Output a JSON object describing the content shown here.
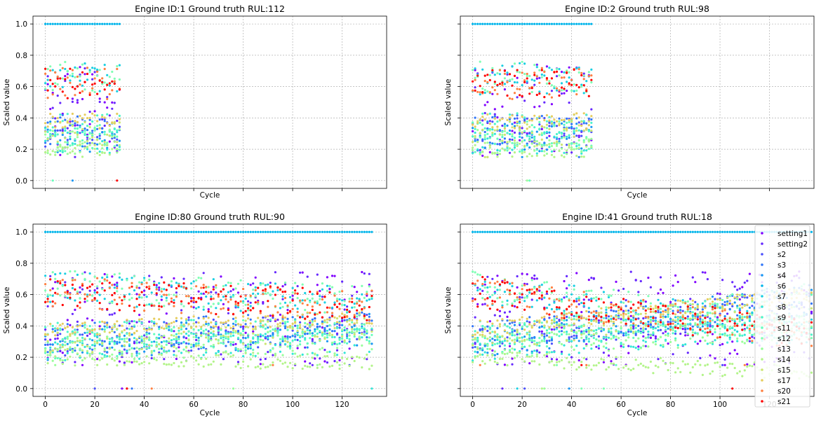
{
  "figure": {
    "shared_xlabel": "Cycle",
    "shared_ylabel": "Scaled value"
  },
  "legend": {
    "entries": [
      {
        "name": "setting1",
        "color": "#8000ff"
      },
      {
        "name": "setting2",
        "color": "#6629fe"
      },
      {
        "name": "s2",
        "color": "#4c50fc"
      },
      {
        "name": "s3",
        "color": "#3176f8"
      },
      {
        "name": "s4",
        "color": "#1996f3"
      },
      {
        "name": "s6",
        "color": "#00b5eb"
      },
      {
        "name": "s7",
        "color": "#19cfe2"
      },
      {
        "name": "s8",
        "color": "#32e6d7"
      },
      {
        "name": "s9",
        "color": "#4df5ca"
      },
      {
        "name": "s11",
        "color": "#66febb"
      },
      {
        "name": "s12",
        "color": "#80ffb4"
      },
      {
        "name": "s13",
        "color": "#9afe9b"
      },
      {
        "name": "s14",
        "color": "#b3f48a"
      },
      {
        "name": "s15",
        "color": "#cce572"
      },
      {
        "name": "s17",
        "color": "#e6cd5e"
      },
      {
        "name": "s20",
        "color": "#ff7f41"
      },
      {
        "name": "s21",
        "color": "#ff0000"
      }
    ]
  },
  "chart_data": [
    {
      "type": "scatter",
      "title": "Engine ID:1  Ground truth RUL:112",
      "xlabel": "Cycle",
      "ylabel": "Scaled value",
      "xlim": [
        -5,
        138
      ],
      "ylim": [
        -0.05,
        1.05
      ],
      "x_ticks": [
        0,
        20,
        40,
        60,
        80,
        100,
        120
      ],
      "y_ticks": [
        0.0,
        0.2,
        0.4,
        0.6,
        0.8,
        1.0
      ],
      "x_ticklabels_visible": false,
      "y_ticklabels_visible": true,
      "grid": true,
      "legend": "none",
      "n_cycles": 31,
      "seed": 11,
      "trend": "early-life"
    },
    {
      "type": "scatter",
      "title": "Engine ID:2  Ground truth RUL:98",
      "xlabel": "Cycle",
      "ylabel": "Scaled value",
      "xlim": [
        -5,
        138
      ],
      "ylim": [
        -0.05,
        1.05
      ],
      "x_ticks": [
        0,
        20,
        40,
        60,
        80,
        100,
        120
      ],
      "y_ticks": [
        0.0,
        0.2,
        0.4,
        0.6,
        0.8,
        1.0
      ],
      "x_ticklabels_visible": false,
      "y_ticklabels_visible": false,
      "grid": true,
      "legend": "none",
      "n_cycles": 49,
      "seed": 22,
      "trend": "early-life"
    },
    {
      "type": "scatter",
      "title": "Engine ID:80  Ground truth RUL:90",
      "xlabel": "Cycle",
      "ylabel": "Scaled value",
      "xlim": [
        -5,
        138
      ],
      "ylim": [
        -0.05,
        1.05
      ],
      "x_ticks": [
        0,
        20,
        40,
        60,
        80,
        100,
        120
      ],
      "y_ticks": [
        0.0,
        0.2,
        0.4,
        0.6,
        0.8,
        1.0
      ],
      "x_ticklabels_visible": true,
      "y_ticklabels_visible": true,
      "grid": true,
      "legend": "none",
      "n_cycles": 133,
      "seed": 33,
      "trend": "mild-degradation"
    },
    {
      "type": "scatter",
      "title": "Engine ID:41  Ground truth RUL:18",
      "xlabel": "Cycle",
      "ylabel": "Scaled value",
      "xlim": [
        -5,
        138
      ],
      "ylim": [
        -0.05,
        1.05
      ],
      "x_ticks": [
        0,
        20,
        40,
        60,
        80,
        100,
        120
      ],
      "y_ticks": [
        0.0,
        0.2,
        0.4,
        0.6,
        0.8,
        1.0
      ],
      "x_ticklabels_visible": true,
      "y_ticklabels_visible": false,
      "grid": true,
      "legend": "upper right",
      "n_cycles": 138,
      "seed": 44,
      "trend": "strong-degradation"
    }
  ]
}
